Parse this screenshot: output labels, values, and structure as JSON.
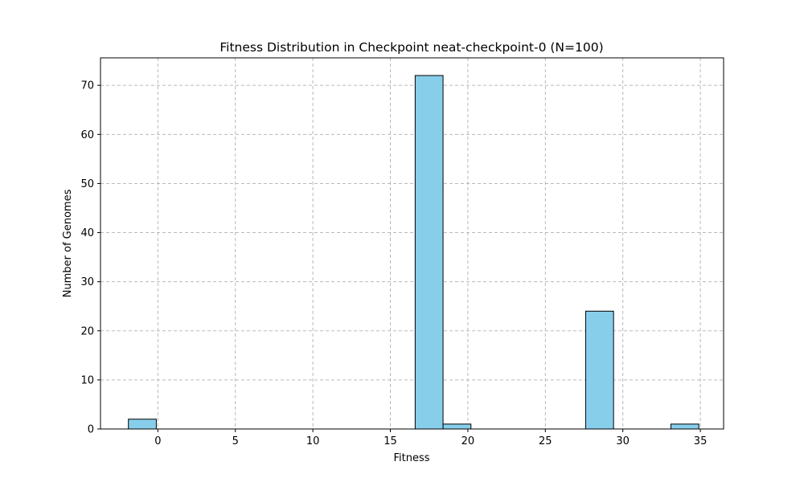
{
  "chart_data": {
    "type": "bar",
    "title": "Fitness Distribution in Checkpoint neat-checkpoint-0 (N=100)",
    "xlabel": "Fitness",
    "ylabel": "Number of Genomes",
    "xlim": [
      -3.7,
      36.5
    ],
    "ylim": [
      0,
      75.6
    ],
    "xticks": [
      0,
      5,
      10,
      15,
      20,
      25,
      30,
      35
    ],
    "yticks": [
      0,
      10,
      20,
      30,
      40,
      50,
      60,
      70
    ],
    "grid": true,
    "bar_color": "#87CEEB",
    "edge_color": "#000000",
    "bins": [
      {
        "x0": -1.9,
        "x1": -0.1,
        "count": 2
      },
      {
        "x0": 16.6,
        "x1": 18.4,
        "count": 72
      },
      {
        "x0": 18.4,
        "x1": 20.2,
        "count": 1
      },
      {
        "x0": 27.6,
        "x1": 29.4,
        "count": 24
      },
      {
        "x0": 33.1,
        "x1": 34.9,
        "count": 1
      }
    ]
  }
}
